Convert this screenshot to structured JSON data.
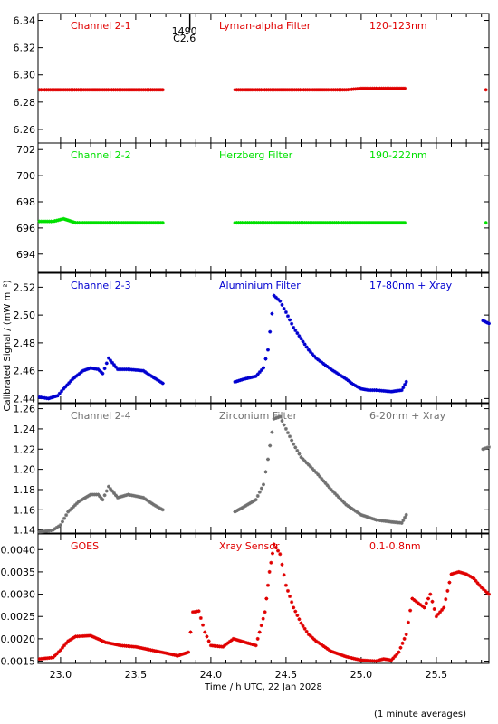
{
  "footer_note": "(1 minute averages)",
  "chart_data": {
    "type": "scatter",
    "xlabel": "Time / h UTC, 22 Jan 2028",
    "ylabel": "Calibrated Signal / (mW m⁻²)",
    "xlim": [
      22.85,
      25.85
    ],
    "xticks": [
      23.0,
      23.5,
      24.0,
      24.5,
      25.0,
      25.5
    ],
    "xtick_labels": [
      "23.0",
      "23.5",
      "24.0",
      "24.5",
      "25.0",
      "25.5"
    ],
    "marker_annotation": {
      "x": 23.86,
      "labels": [
        "1490",
        "C2.6"
      ]
    },
    "panels": [
      {
        "name": "Channel 2-1",
        "filter": "Lyman-alpha Filter",
        "band": "120-123nm",
        "color": "#e00000",
        "ylim": [
          6.25,
          6.345
        ],
        "yticks": [
          6.26,
          6.28,
          6.3,
          6.32,
          6.34
        ],
        "ytick_labels": [
          "6.26",
          "6.28",
          "6.30",
          "6.32",
          "6.34"
        ],
        "points": [
          [
            22.86,
            6.289
          ],
          [
            23.0,
            6.289
          ],
          [
            23.2,
            6.289
          ],
          [
            23.4,
            6.289
          ],
          [
            23.6,
            6.289
          ],
          [
            23.68,
            6.289
          ],
          [
            24.16,
            6.289
          ],
          [
            24.3,
            6.289
          ],
          [
            24.5,
            6.289
          ],
          [
            24.7,
            6.289
          ],
          [
            24.9,
            6.289
          ],
          [
            25.0,
            6.29
          ],
          [
            25.1,
            6.29
          ],
          [
            25.29,
            6.29
          ],
          [
            25.83,
            6.289
          ]
        ]
      },
      {
        "name": "Channel 2-2",
        "filter": "Herzberg Filter",
        "band": "190-222nm",
        "color": "#00e000",
        "ylim": [
          692.6,
          702.5
        ],
        "yticks": [
          694,
          696,
          698,
          700,
          702
        ],
        "ytick_labels": [
          "694",
          "696",
          "698",
          "700",
          "702"
        ],
        "points": [
          [
            22.86,
            696.5
          ],
          [
            22.95,
            696.5
          ],
          [
            23.02,
            696.7
          ],
          [
            23.1,
            696.4
          ],
          [
            23.3,
            696.4
          ],
          [
            23.5,
            696.4
          ],
          [
            23.68,
            696.4
          ],
          [
            24.16,
            696.4
          ],
          [
            24.4,
            696.4
          ],
          [
            24.6,
            696.4
          ],
          [
            24.8,
            696.4
          ],
          [
            25.0,
            696.4
          ],
          [
            25.29,
            696.4
          ],
          [
            25.83,
            696.4
          ]
        ]
      },
      {
        "name": "Channel 2-3",
        "filter": "Aluminium Filter",
        "band": "17-80nm + Xray",
        "color": "#0000d0",
        "ylim": [
          2.437,
          2.53
        ],
        "yticks": [
          2.44,
          2.46,
          2.48,
          2.5,
          2.52
        ],
        "ytick_labels": [
          "2.44",
          "2.46",
          "2.48",
          "2.50",
          "2.52"
        ],
        "points": [
          [
            22.86,
            2.441
          ],
          [
            22.92,
            2.44
          ],
          [
            22.98,
            2.442
          ],
          [
            23.02,
            2.447
          ],
          [
            23.08,
            2.454
          ],
          [
            23.15,
            2.46
          ],
          [
            23.2,
            2.462
          ],
          [
            23.25,
            2.461
          ],
          [
            23.28,
            2.458
          ],
          [
            23.32,
            2.469
          ],
          [
            23.38,
            2.461
          ],
          [
            23.45,
            2.461
          ],
          [
            23.55,
            2.46
          ],
          [
            23.62,
            2.455
          ],
          [
            23.68,
            2.451
          ],
          [
            24.16,
            2.452
          ],
          [
            24.22,
            2.454
          ],
          [
            24.3,
            2.456
          ],
          [
            24.35,
            2.462
          ],
          [
            24.38,
            2.475
          ],
          [
            24.42,
            2.514
          ],
          [
            24.46,
            2.51
          ],
          [
            24.5,
            2.502
          ],
          [
            24.55,
            2.491
          ],
          [
            24.6,
            2.483
          ],
          [
            24.65,
            2.475
          ],
          [
            24.7,
            2.469
          ],
          [
            24.8,
            2.461
          ],
          [
            24.9,
            2.454
          ],
          [
            24.95,
            2.45
          ],
          [
            25.0,
            2.447
          ],
          [
            25.05,
            2.446
          ],
          [
            25.1,
            2.446
          ],
          [
            25.2,
            2.445
          ],
          [
            25.27,
            2.446
          ],
          [
            25.3,
            2.452
          ],
          [
            25.81,
            2.496
          ],
          [
            25.85,
            2.494
          ]
        ]
      },
      {
        "name": "Channel 2-4",
        "filter": "Zirconium Filter",
        "band": "6-20nm + Xray",
        "color": "#707070",
        "ylim": [
          1.137,
          1.265
        ],
        "yticks": [
          1.14,
          1.16,
          1.18,
          1.2,
          1.22,
          1.24,
          1.26
        ],
        "ytick_labels": [
          "1.14",
          "1.16",
          "1.18",
          "1.20",
          "1.22",
          "1.24",
          "1.26"
        ],
        "points": [
          [
            22.86,
            1.138
          ],
          [
            22.95,
            1.14
          ],
          [
            23.0,
            1.145
          ],
          [
            23.05,
            1.158
          ],
          [
            23.12,
            1.168
          ],
          [
            23.2,
            1.175
          ],
          [
            23.25,
            1.175
          ],
          [
            23.28,
            1.17
          ],
          [
            23.32,
            1.183
          ],
          [
            23.38,
            1.172
          ],
          [
            23.45,
            1.175
          ],
          [
            23.55,
            1.172
          ],
          [
            23.62,
            1.165
          ],
          [
            23.68,
            1.16
          ],
          [
            24.16,
            1.158
          ],
          [
            24.22,
            1.163
          ],
          [
            24.3,
            1.17
          ],
          [
            24.35,
            1.185
          ],
          [
            24.38,
            1.21
          ],
          [
            24.42,
            1.25
          ],
          [
            24.46,
            1.252
          ],
          [
            24.5,
            1.24
          ],
          [
            24.55,
            1.225
          ],
          [
            24.6,
            1.212
          ],
          [
            24.7,
            1.197
          ],
          [
            24.8,
            1.18
          ],
          [
            24.9,
            1.165
          ],
          [
            25.0,
            1.155
          ],
          [
            25.1,
            1.15
          ],
          [
            25.2,
            1.148
          ],
          [
            25.27,
            1.147
          ],
          [
            25.3,
            1.155
          ],
          [
            25.81,
            1.22
          ],
          [
            25.85,
            1.222
          ]
        ]
      },
      {
        "name": "GOES",
        "filter": "Xray Sensor",
        "band": "0.1-0.8nm",
        "color": "#e00000",
        "ylim": [
          0.00145,
          0.00435
        ],
        "yticks": [
          0.0015,
          0.002,
          0.0025,
          0.003,
          0.0035,
          0.004
        ],
        "ytick_labels": [
          "0.0015",
          "0.0020",
          "0.0025",
          "0.0030",
          "0.0035",
          "0.0040"
        ],
        "points": [
          [
            22.86,
            0.00155
          ],
          [
            22.95,
            0.00158
          ],
          [
            23.0,
            0.00175
          ],
          [
            23.05,
            0.00195
          ],
          [
            23.1,
            0.00205
          ],
          [
            23.2,
            0.00207
          ],
          [
            23.3,
            0.00192
          ],
          [
            23.4,
            0.00185
          ],
          [
            23.5,
            0.00182
          ],
          [
            23.6,
            0.00175
          ],
          [
            23.7,
            0.00168
          ],
          [
            23.78,
            0.00162
          ],
          [
            23.85,
            0.0017
          ],
          [
            23.88,
            0.0026
          ],
          [
            23.92,
            0.00262
          ],
          [
            23.96,
            0.00215
          ],
          [
            24.0,
            0.00185
          ],
          [
            24.08,
            0.00182
          ],
          [
            24.15,
            0.002
          ],
          [
            24.25,
            0.0019
          ],
          [
            24.3,
            0.00185
          ],
          [
            24.36,
            0.0026
          ],
          [
            24.39,
            0.0035
          ],
          [
            24.42,
            0.00412
          ],
          [
            24.46,
            0.0039
          ],
          [
            24.5,
            0.0032
          ],
          [
            24.55,
            0.0027
          ],
          [
            24.6,
            0.00235
          ],
          [
            24.65,
            0.0021
          ],
          [
            24.7,
            0.00195
          ],
          [
            24.8,
            0.00172
          ],
          [
            24.9,
            0.0016
          ],
          [
            25.0,
            0.00152
          ],
          [
            25.1,
            0.0015
          ],
          [
            25.15,
            0.00155
          ],
          [
            25.2,
            0.00152
          ],
          [
            25.25,
            0.0017
          ],
          [
            25.3,
            0.0021
          ],
          [
            25.34,
            0.0029
          ],
          [
            25.38,
            0.0028
          ],
          [
            25.42,
            0.0027
          ],
          [
            25.46,
            0.003
          ],
          [
            25.5,
            0.0025
          ],
          [
            25.55,
            0.0027
          ],
          [
            25.6,
            0.00345
          ],
          [
            25.65,
            0.0035
          ],
          [
            25.7,
            0.00345
          ],
          [
            25.75,
            0.00335
          ],
          [
            25.8,
            0.00315
          ],
          [
            25.85,
            0.003
          ]
        ]
      }
    ]
  }
}
